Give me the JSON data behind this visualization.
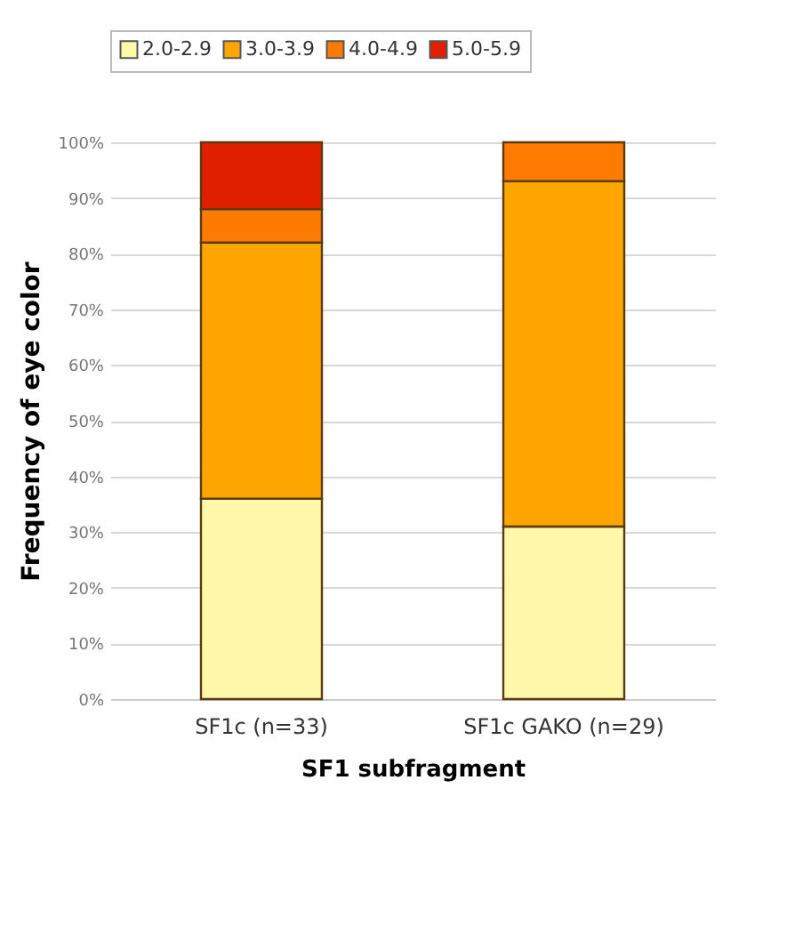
{
  "chart_data": {
    "type": "bar",
    "stacked": true,
    "xlabel": "SF1 subfragment",
    "ylabel": "Frequency of eye color",
    "categories": [
      "SF1c (n=33)",
      "SF1c GAKO (n=29)"
    ],
    "series": [
      {
        "name": "2.0-2.9",
        "color": "#fff8a8",
        "values": [
          36,
          31
        ]
      },
      {
        "name": "3.0-3.9",
        "color": "#ffa500",
        "values": [
          46,
          62
        ]
      },
      {
        "name": "4.0-4.9",
        "color": "#ff7a00",
        "values": [
          6,
          7
        ]
      },
      {
        "name": "5.0-5.9",
        "color": "#e02000",
        "values": [
          12,
          null
        ]
      }
    ],
    "ylim": [
      0,
      100
    ],
    "yticks": [
      {
        "value": 0,
        "label": "0%"
      },
      {
        "value": 10,
        "label": "10%"
      },
      {
        "value": 20,
        "label": "20%"
      },
      {
        "value": 30,
        "label": "30%"
      },
      {
        "value": 40,
        "label": "40%"
      },
      {
        "value": 50,
        "label": "50%"
      },
      {
        "value": 60,
        "label": "60%"
      },
      {
        "value": 70,
        "label": "70%"
      },
      {
        "value": 80,
        "label": "80%"
      },
      {
        "value": 90,
        "label": "90%"
      },
      {
        "value": 100,
        "label": "100%"
      }
    ],
    "grid": "y",
    "legend": "top"
  }
}
